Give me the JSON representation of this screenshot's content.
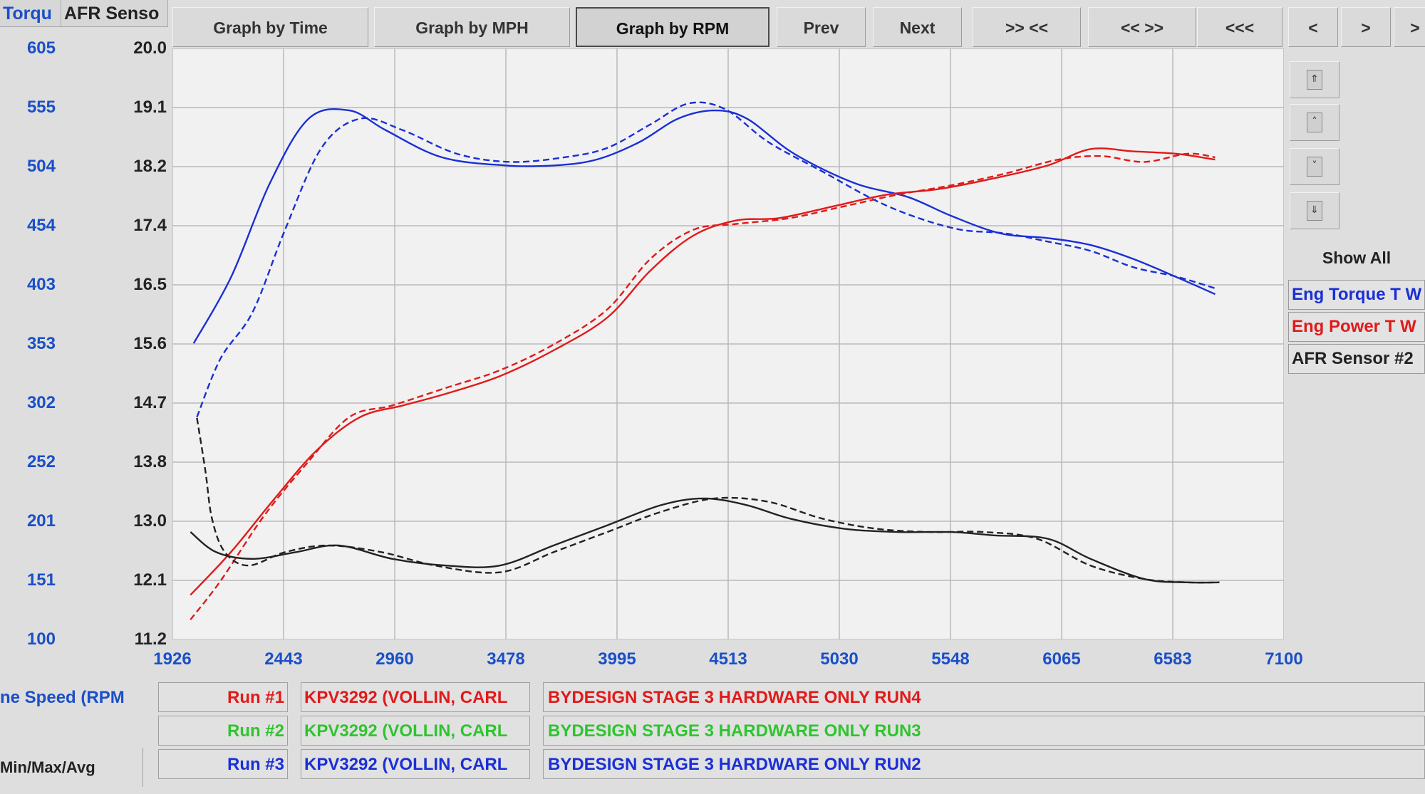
{
  "header": {
    "torque_col": "Torqu",
    "afr_col": "AFR Senso"
  },
  "toolbar": {
    "buttons": [
      "Graph by Time",
      "Graph by MPH",
      "Graph by RPM",
      "Prev",
      "Next",
      ">> <<",
      "<< >>",
      "<<<",
      "<",
      ">",
      ">"
    ],
    "active": "Graph by RPM"
  },
  "side_panel": {
    "show_all": "Show All",
    "legend": [
      {
        "label": "Eng Torque T W",
        "color": "#1a2fd6"
      },
      {
        "label": "Eng Power T W",
        "color": "#e01a1a"
      },
      {
        "label": "AFR Sensor #2",
        "color": "#222222"
      }
    ]
  },
  "bottom": {
    "x_axis_name": "ne Speed (RPM",
    "stats_label": "Min/Max/Avg",
    "runs": [
      {
        "label": "Run #1",
        "car": "KPV3292 (VOLLIN, CARL",
        "desc": "BYDESIGN STAGE 3 HARDWARE ONLY RUN4",
        "label_color": "#e01a1a",
        "text_color": "#e01a1a"
      },
      {
        "label": "Run #2",
        "car": "KPV3292 (VOLLIN, CARL",
        "desc": "BYDESIGN STAGE 3 HARDWARE ONLY RUN3",
        "label_color": "#2fc42f",
        "text_color": "#2fc42f"
      },
      {
        "label": "Run #3",
        "car": "KPV3292 (VOLLIN, CARL",
        "desc": "BYDESIGN STAGE 3 HARDWARE ONLY RUN2",
        "label_color": "#1a2fd6",
        "text_color": "#1a2fd6"
      }
    ]
  },
  "colors": {
    "axis_blue": "#1a4fc8",
    "torque": "#1a2fd6",
    "power": "#e01a1a",
    "afr": "#222222",
    "grid": "#b9b9b9",
    "plot_bg": "#f1f1f1"
  },
  "chart_data": {
    "type": "line",
    "x_ticks": [
      "1926",
      "2443",
      "2960",
      "3478",
      "3995",
      "4513",
      "5030",
      "5548",
      "6065",
      "6583",
      "7100"
    ],
    "xlim": [
      1926,
      7100
    ],
    "y_left_ticks": [
      "605",
      "555",
      "504",
      "454",
      "403",
      "353",
      "302",
      "252",
      "201",
      "151",
      "100"
    ],
    "y_left_lim": [
      100,
      605
    ],
    "y_afr_ticks": [
      "20.0",
      "19.1",
      "18.2",
      "17.4",
      "16.5",
      "15.6",
      "14.7",
      "13.8",
      "13.0",
      "12.1",
      "11.2"
    ],
    "y_afr_lim": [
      11.2,
      20.0
    ],
    "grid": true,
    "series": [
      {
        "name": "Eng Torque T W",
        "axis": "left",
        "style": "solid",
        "color": "#1a2fd6",
        "x": [
          2025,
          2200,
          2380,
          2560,
          2750,
          2920,
          3180,
          3480,
          3700,
          3900,
          4100,
          4280,
          4450,
          4600,
          4820,
          5100,
          5350,
          5550,
          5780,
          6000,
          6200,
          6400,
          6620,
          6780
        ],
        "y": [
          353,
          410,
          490,
          545,
          552,
          535,
          512,
          505,
          505,
          510,
          525,
          545,
          552,
          545,
          515,
          490,
          478,
          462,
          447,
          443,
          437,
          425,
          408,
          395
        ]
      },
      {
        "name": "Eng Torque T W",
        "axis": "left",
        "style": "dashed",
        "color": "#1a2fd6",
        "x": [
          2040,
          2150,
          2300,
          2450,
          2620,
          2800,
          3000,
          3250,
          3500,
          3750,
          3950,
          4150,
          4330,
          4500,
          4700,
          4950,
          5200,
          5400,
          5600,
          5800,
          6000,
          6200,
          6400,
          6600,
          6780
        ],
        "y": [
          290,
          340,
          380,
          450,
          520,
          545,
          535,
          515,
          508,
          512,
          520,
          540,
          558,
          553,
          525,
          500,
          475,
          460,
          450,
          447,
          440,
          432,
          418,
          410,
          400
        ]
      },
      {
        "name": "Eng Power T W",
        "axis": "left",
        "style": "solid",
        "color": "#e01a1a",
        "x": [
          2010,
          2200,
          2400,
          2600,
          2800,
          3000,
          3200,
          3450,
          3700,
          3950,
          4150,
          4350,
          4550,
          4750,
          5000,
          5250,
          5500,
          5750,
          6000,
          6200,
          6400,
          6600,
          6780
        ],
        "y": [
          138,
          175,
          220,
          262,
          290,
          300,
          310,
          325,
          347,
          375,
          415,
          445,
          458,
          460,
          470,
          480,
          485,
          494,
          505,
          519,
          517,
          515,
          510
        ]
      },
      {
        "name": "Eng Power T W",
        "axis": "left",
        "style": "dashed",
        "color": "#e01a1a",
        "x": [
          2010,
          2150,
          2350,
          2550,
          2750,
          2950,
          3200,
          3450,
          3700,
          3950,
          4150,
          4350,
          4550,
          4800,
          5050,
          5300,
          5550,
          5800,
          6050,
          6250,
          6450,
          6650,
          6780
        ],
        "y": [
          117,
          150,
          205,
          250,
          290,
          300,
          315,
          330,
          352,
          382,
          425,
          450,
          455,
          460,
          470,
          480,
          488,
          498,
          510,
          513,
          508,
          515,
          512
        ]
      },
      {
        "name": "AFR Sensor #2",
        "axis": "afr",
        "style": "solid",
        "color": "#222222",
        "x": [
          2010,
          2130,
          2300,
          2500,
          2700,
          2950,
          3200,
          3450,
          3700,
          3950,
          4200,
          4400,
          4600,
          4800,
          5050,
          5300,
          5550,
          5750,
          6000,
          6200,
          6450,
          6650,
          6800
        ],
        "y": [
          12.8,
          12.5,
          12.4,
          12.5,
          12.6,
          12.4,
          12.3,
          12.3,
          12.6,
          12.9,
          13.2,
          13.3,
          13.2,
          13.0,
          12.85,
          12.8,
          12.8,
          12.75,
          12.7,
          12.4,
          12.1,
          12.05,
          12.05
        ]
      },
      {
        "name": "AFR Sensor #2",
        "axis": "afr",
        "style": "dashed",
        "color": "#222222",
        "x": [
          2040,
          2080,
          2110,
          2170,
          2280,
          2450,
          2650,
          2900,
          3150,
          3450,
          3700,
          3950,
          4200,
          4450,
          4700,
          4950,
          5200,
          5450,
          5700,
          5950,
          6200,
          6450,
          6650,
          6800
        ],
        "y": [
          14.5,
          13.7,
          13.0,
          12.5,
          12.3,
          12.5,
          12.6,
          12.5,
          12.3,
          12.2,
          12.5,
          12.8,
          13.1,
          13.3,
          13.25,
          13.0,
          12.85,
          12.8,
          12.8,
          12.7,
          12.3,
          12.1,
          12.05,
          12.05
        ]
      }
    ]
  }
}
